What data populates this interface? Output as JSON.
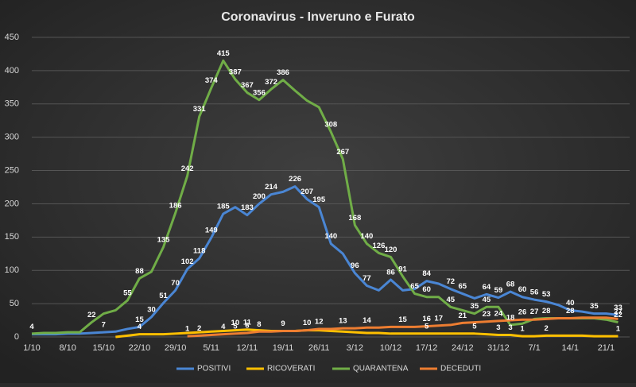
{
  "chart_data": {
    "type": "line",
    "title": "Coronavirus  - Inveruno  e Furato",
    "categories": [
      "1/10",
      null,
      null,
      "8/10",
      null,
      null,
      "15/10",
      null,
      null,
      "22/10",
      null,
      null,
      "29/10",
      null,
      null,
      "5/11",
      null,
      null,
      "12/11",
      null,
      null,
      "19/11",
      null,
      null,
      "26/11",
      null,
      null,
      "3/12",
      null,
      null,
      "10/12",
      null,
      null,
      "17/12",
      null,
      null,
      "24/12",
      null,
      null,
      "31/12",
      null,
      null,
      "7/1",
      null,
      null,
      "14/1",
      null,
      null,
      "21/1",
      null
    ],
    "ylim": [
      0,
      450
    ],
    "yticks": [
      0,
      50,
      100,
      150,
      200,
      250,
      300,
      350,
      400,
      450
    ],
    "grid": true,
    "legend": "bottom",
    "series": [
      {
        "name": "POSITIVI",
        "color": "#4a86d4",
        "values": [
          4,
          4,
          4,
          5,
          5,
          6,
          7,
          8,
          12,
          15,
          30,
          51,
          70,
          102,
          118,
          149,
          185,
          195,
          183,
          200,
          214,
          218,
          226,
          207,
          195,
          140,
          125,
          96,
          77,
          70,
          86,
          70,
          72,
          84,
          80,
          72,
          65,
          58,
          64,
          59,
          68,
          60,
          56,
          53,
          48,
          40,
          38,
          35,
          35,
          33
        ],
        "value_labels": [
          "4",
          null,
          null,
          null,
          null,
          null,
          "7",
          null,
          null,
          "15",
          "30",
          "51",
          "70",
          "102",
          "118",
          "149",
          "185",
          null,
          "183",
          "200",
          "214",
          null,
          "226",
          "207",
          "195",
          "140",
          null,
          "96",
          "77",
          null,
          "86",
          null,
          null,
          "84",
          null,
          "72",
          "65",
          null,
          "64",
          "59",
          "68",
          "60",
          "56",
          "53",
          null,
          "40",
          null,
          "35",
          null,
          "33"
        ]
      },
      {
        "name": "RICOVERATI",
        "color": "#ffc000",
        "values": [
          null,
          null,
          null,
          null,
          null,
          null,
          null,
          0,
          2,
          4,
          4,
          4,
          5,
          6,
          7,
          8,
          9,
          10,
          11,
          10,
          9,
          9,
          9,
          10,
          10,
          9,
          8,
          7,
          6,
          6,
          5,
          5,
          5,
          5,
          5,
          5,
          5,
          5,
          4,
          3,
          3,
          1,
          1,
          2,
          2,
          2,
          2,
          1,
          1,
          1
        ],
        "value_labels": [
          null,
          null,
          null,
          null,
          null,
          null,
          null,
          null,
          null,
          "4",
          null,
          null,
          null,
          null,
          null,
          null,
          null,
          "10",
          "11",
          null,
          null,
          "9",
          null,
          "10",
          null,
          null,
          null,
          null,
          null,
          null,
          null,
          null,
          null,
          "5",
          null,
          null,
          null,
          "5",
          null,
          "3",
          "3",
          "1",
          null,
          "2",
          null,
          null,
          null,
          null,
          null,
          "1"
        ]
      },
      {
        "name": "QUARANTENA",
        "color": "#70ad47",
        "values": [
          5,
          6,
          6,
          7,
          7,
          22,
          35,
          40,
          55,
          88,
          98,
          135,
          186,
          242,
          331,
          374,
          415,
          387,
          367,
          356,
          372,
          386,
          370,
          355,
          345,
          308,
          267,
          168,
          140,
          126,
          120,
          91,
          65,
          60,
          60,
          45,
          40,
          35,
          45,
          45,
          18,
          20,
          27,
          28,
          28,
          28,
          28,
          28,
          26,
          22
        ],
        "value_labels": [
          null,
          null,
          null,
          null,
          null,
          "22",
          null,
          null,
          "55",
          "88",
          null,
          "135",
          "186",
          "242",
          "331",
          "374",
          "415",
          "387",
          "367",
          "356",
          "372",
          "386",
          null,
          null,
          null,
          "308",
          "267",
          "168",
          "140",
          "126",
          "120",
          "91",
          "65",
          "60",
          null,
          "45",
          null,
          "35",
          "45",
          null,
          "18",
          null,
          "27",
          "28",
          null,
          null,
          null,
          null,
          null,
          "22"
        ]
      },
      {
        "name": "DECEDUTI",
        "color": "#ed7d31",
        "values": [
          null,
          null,
          null,
          null,
          null,
          null,
          null,
          null,
          null,
          null,
          null,
          null,
          null,
          1,
          2,
          3,
          4,
          5,
          6,
          8,
          8,
          9,
          9,
          10,
          12,
          12,
          13,
          13,
          14,
          14,
          15,
          15,
          15,
          16,
          17,
          18,
          21,
          22,
          23,
          24,
          25,
          26,
          26,
          27,
          28,
          28,
          29,
          29,
          29,
          27
        ],
        "value_labels": [
          null,
          null,
          null,
          null,
          null,
          null,
          null,
          null,
          null,
          null,
          null,
          null,
          null,
          "1",
          "2",
          null,
          "4",
          "5",
          "6",
          "8",
          null,
          null,
          null,
          null,
          "12",
          null,
          "13",
          null,
          "14",
          null,
          null,
          "15",
          null,
          "16",
          "17",
          null,
          "21",
          null,
          "23",
          "24",
          null,
          "26",
          null,
          null,
          null,
          "28",
          null,
          null,
          null,
          "27"
        ]
      }
    ]
  }
}
